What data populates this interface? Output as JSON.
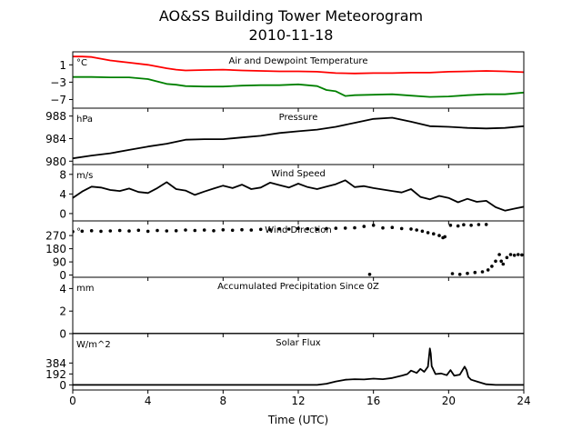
{
  "figure": {
    "title": "AO&SS Building Tower Meteorogram",
    "subtitle": "2010-11-18",
    "xlabel": "Time (UTC)"
  },
  "chart_data": [
    {
      "type": "line",
      "title": "Air and Dewpoint Temperature",
      "unit_label": "°C",
      "xlim": [
        0,
        24
      ],
      "ylim": [
        -9,
        4
      ],
      "yticks": [
        1,
        -3,
        -7
      ],
      "series": [
        {
          "color": "#ff0000",
          "x": [
            0,
            0.5,
            1,
            1.5,
            2,
            3,
            4,
            5,
            5.5,
            6,
            7,
            8,
            9,
            10,
            11,
            12,
            13,
            14,
            15,
            16,
            17,
            18,
            19,
            20,
            21,
            22,
            23,
            24
          ],
          "y": [
            2.9,
            2.9,
            2.8,
            2.4,
            2.0,
            1.5,
            1.0,
            0.2,
            -0.1,
            -0.3,
            -0.2,
            -0.1,
            -0.3,
            -0.4,
            -0.5,
            -0.5,
            -0.6,
            -0.9,
            -1.0,
            -0.9,
            -0.9,
            -0.8,
            -0.8,
            -0.6,
            -0.5,
            -0.4,
            -0.5,
            -0.7
          ]
        },
        {
          "color": "#008000",
          "x": [
            0,
            1,
            2,
            3,
            4,
            5,
            5.5,
            6,
            7,
            8,
            9,
            10,
            11,
            12,
            13,
            13.5,
            14,
            14.5,
            15,
            16,
            17,
            18,
            19,
            20,
            21,
            22,
            23,
            24
          ],
          "y": [
            -1.8,
            -1.8,
            -1.9,
            -1.9,
            -2.3,
            -3.4,
            -3.6,
            -3.9,
            -4.0,
            -4.0,
            -3.8,
            -3.7,
            -3.7,
            -3.5,
            -3.9,
            -4.8,
            -5.1,
            -6.2,
            -6.0,
            -5.9,
            -5.8,
            -6.1,
            -6.4,
            -6.3,
            -6.0,
            -5.8,
            -5.8,
            -5.4
          ]
        }
      ]
    },
    {
      "type": "line",
      "title": "Pressure",
      "unit_label": "hPa",
      "xlim": [
        0,
        24
      ],
      "ylim": [
        979.4,
        989.4
      ],
      "yticks": [
        980,
        984,
        988
      ],
      "series": [
        {
          "color": "#000000",
          "x": [
            0,
            1,
            2,
            3,
            4,
            5,
            6,
            7,
            8,
            9,
            10,
            11,
            12,
            13,
            14,
            15,
            16,
            17,
            18,
            19,
            20,
            21,
            22,
            23,
            24
          ],
          "y": [
            980.5,
            981.0,
            981.4,
            982.0,
            982.6,
            983.1,
            983.8,
            983.9,
            983.9,
            984.2,
            984.5,
            985.0,
            985.3,
            985.6,
            986.1,
            986.8,
            987.5,
            987.7,
            987.0,
            986.2,
            986.1,
            985.9,
            985.8,
            985.9,
            986.2
          ]
        }
      ]
    },
    {
      "type": "line",
      "title": "Wind Speed",
      "unit_label": "m/s",
      "xlim": [
        0,
        24
      ],
      "ylim": [
        -1.5,
        10
      ],
      "yticks": [
        0,
        4,
        8
      ],
      "series": [
        {
          "color": "#000000",
          "x": [
            0,
            0.5,
            1,
            1.5,
            2,
            2.5,
            3,
            3.5,
            4,
            4.5,
            5,
            5.5,
            6,
            6.5,
            7,
            7.5,
            8,
            8.5,
            9,
            9.5,
            10,
            10.5,
            11,
            11.5,
            12,
            12.5,
            13,
            13.5,
            14,
            14.5,
            15,
            15.5,
            16,
            16.5,
            17,
            17.5,
            18,
            18.5,
            19,
            19.5,
            20,
            20.5,
            21,
            21.5,
            22,
            22.5,
            23,
            23.5,
            24
          ],
          "y": [
            3.2,
            4.5,
            5.5,
            5.3,
            4.8,
            4.6,
            5.1,
            4.4,
            4.2,
            5.2,
            6.4,
            5.0,
            4.7,
            3.8,
            4.5,
            5.1,
            5.7,
            5.2,
            5.9,
            5.0,
            5.3,
            6.3,
            5.8,
            5.3,
            6.1,
            5.4,
            5.0,
            5.5,
            6.0,
            6.8,
            5.4,
            5.6,
            5.2,
            4.9,
            4.6,
            4.3,
            5.0,
            3.4,
            2.9,
            3.6,
            3.2,
            2.3,
            3.0,
            2.4,
            2.6,
            1.3,
            0.6,
            1.0,
            1.4
          ]
        }
      ]
    },
    {
      "type": "scatter",
      "title": "Wind Direction",
      "unit_label": "°",
      "xlim": [
        0,
        24
      ],
      "ylim": [
        -15,
        370
      ],
      "yticks": [
        0,
        90,
        180,
        270
      ],
      "series": [
        {
          "color": "#000000",
          "x": [
            0,
            0.5,
            1,
            1.5,
            2,
            2.5,
            3,
            3.5,
            4,
            4.5,
            5,
            5.5,
            6,
            6.5,
            7,
            7.5,
            8,
            8.5,
            9,
            9.5,
            10,
            10.5,
            11,
            11.5,
            12,
            12.5,
            13,
            13.5,
            14,
            14.5,
            15,
            15.5,
            16,
            16.5,
            17,
            17.5,
            18,
            18.3,
            18.6,
            18.9,
            19.2,
            19.5,
            19.8,
            20.1,
            20.5,
            20.8,
            21.2,
            21.6,
            22,
            15.8,
            19.7,
            20.2,
            20.6,
            21,
            21.4,
            21.8,
            22.1,
            22.3,
            22.5,
            22.7,
            22.8,
            22.9,
            23.1,
            23.3,
            23.5,
            23.7,
            23.9
          ],
          "y": [
            297,
            300,
            303,
            299,
            302,
            304,
            301,
            306,
            299,
            305,
            302,
            303,
            308,
            305,
            307,
            303,
            309,
            306,
            310,
            307,
            312,
            310,
            316,
            314,
            319,
            316,
            313,
            318,
            320,
            321,
            323,
            332,
            340,
            322,
            325,
            318,
            315,
            308,
            300,
            290,
            282,
            270,
            262,
            340,
            335,
            344,
            340,
            345,
            346,
            5,
            255,
            10,
            5,
            12,
            18,
            22,
            35,
            60,
            95,
            140,
            95,
            75,
            120,
            140,
            135,
            140,
            138
          ]
        }
      ]
    },
    {
      "type": "line",
      "title": "Accumulated Precipitation Since 0Z",
      "unit_label": "mm",
      "xlim": [
        0,
        24
      ],
      "ylim": [
        0,
        5
      ],
      "yticks": [
        0,
        2,
        4
      ],
      "series": [
        {
          "color": "#000000",
          "x": [
            0,
            24
          ],
          "y": [
            0,
            0
          ]
        }
      ]
    },
    {
      "type": "line",
      "title": "Solar Flux",
      "unit_label": "W/m^2",
      "xlim": [
        0,
        24
      ],
      "ylim": [
        -90,
        900
      ],
      "yticks": [
        0,
        192,
        384
      ],
      "series": [
        {
          "color": "#000000",
          "x": [
            0,
            4,
            8,
            12,
            13,
            13.5,
            14,
            14.5,
            15,
            15.5,
            16,
            16.5,
            17,
            17.5,
            17.8,
            18,
            18.3,
            18.5,
            18.7,
            18.9,
            19,
            19.05,
            19.1,
            19.3,
            19.6,
            19.9,
            20.1,
            20.3,
            20.6,
            20.85,
            20.95,
            21.05,
            21.2,
            21.5,
            21.8,
            22,
            22.5,
            23,
            24
          ],
          "y": [
            0,
            0,
            0,
            0,
            0,
            20,
            60,
            90,
            100,
            95,
            110,
            100,
            120,
            160,
            190,
            250,
            210,
            280,
            230,
            320,
            640,
            550,
            330,
            190,
            200,
            170,
            260,
            160,
            180,
            320,
            260,
            140,
            90,
            60,
            30,
            10,
            0,
            0,
            0
          ]
        }
      ]
    }
  ]
}
